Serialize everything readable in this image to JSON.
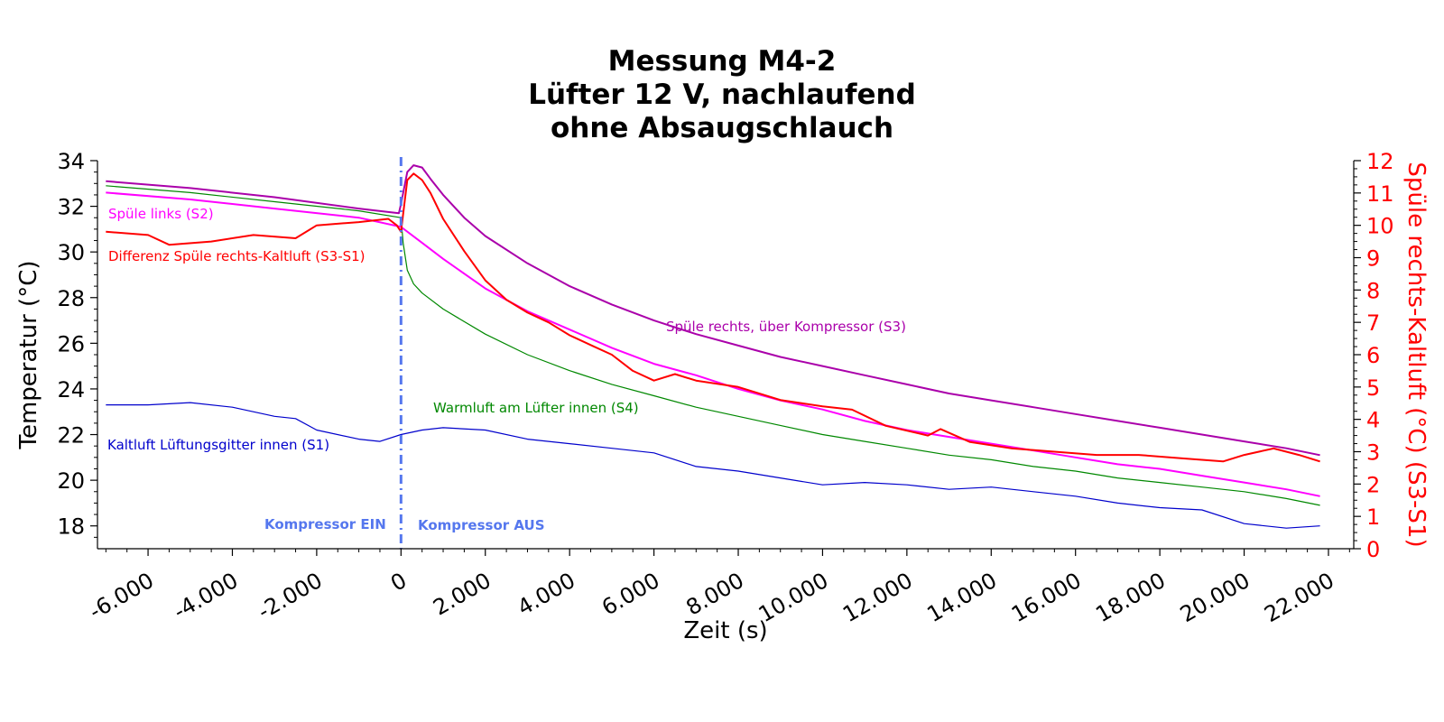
{
  "chart_data": {
    "type": "line",
    "title_lines": [
      "Messung M4-2",
      "Lüfter 12 V, nachlaufend",
      "ohne Absaugschlauch"
    ],
    "xlabel": "Zeit (s)",
    "ylabel": "Temperatur (°C)",
    "y2label": "Spüle rechts-Kaltluft (°C) (S3-S1)",
    "xlim": [
      -7200,
      22600
    ],
    "ylim": [
      17,
      34
    ],
    "y2lim": [
      0,
      12
    ],
    "xticks": [
      -6000,
      -4000,
      -2000,
      0,
      2000,
      4000,
      6000,
      8000,
      10000,
      12000,
      14000,
      16000,
      18000,
      20000,
      22000
    ],
    "xtick_labels": [
      "-6.000",
      "-4.000",
      "-2.000",
      "0",
      "2.000",
      "4.000",
      "6.000",
      "8.000",
      "10.000",
      "12.000",
      "14.000",
      "16.000",
      "18.000",
      "20.000",
      "22.000"
    ],
    "yticks": [
      18,
      20,
      22,
      24,
      26,
      28,
      30,
      32,
      34
    ],
    "y2ticks": [
      0,
      1,
      2,
      3,
      4,
      5,
      6,
      7,
      8,
      9,
      10,
      11,
      12
    ],
    "grid": false,
    "series": [
      {
        "name": "Spüle rechts, über Kompressor (S3)",
        "axis": "left",
        "color": "#aa00aa",
        "x": [
          -7000,
          -5000,
          -3000,
          -1000,
          -50,
          0,
          150,
          300,
          500,
          700,
          1000,
          1500,
          2000,
          3000,
          4000,
          5000,
          6000,
          7000,
          8000,
          9000,
          10000,
          11000,
          12000,
          13000,
          14000,
          15000,
          16000,
          17000,
          18000,
          19000,
          20000,
          21000,
          21800
        ],
        "y": [
          33.1,
          32.8,
          32.4,
          31.9,
          31.7,
          32.1,
          33.5,
          33.8,
          33.7,
          33.2,
          32.5,
          31.5,
          30.7,
          29.5,
          28.5,
          27.7,
          27.0,
          26.4,
          25.9,
          25.4,
          25.0,
          24.6,
          24.2,
          23.8,
          23.5,
          23.2,
          22.9,
          22.6,
          22.3,
          22.0,
          21.7,
          21.4,
          21.1
        ]
      },
      {
        "name": "Spüle links (S2)",
        "axis": "left",
        "color": "#ff00ff",
        "x": [
          -7000,
          -5000,
          -3000,
          -1000,
          0,
          500,
          1000,
          2000,
          3000,
          4000,
          5000,
          6000,
          7000,
          8000,
          9000,
          10000,
          11000,
          12000,
          13000,
          14000,
          15000,
          16000,
          17000,
          18000,
          19000,
          20000,
          21000,
          21800
        ],
        "y": [
          32.6,
          32.3,
          31.9,
          31.5,
          31.1,
          30.4,
          29.7,
          28.4,
          27.4,
          26.6,
          25.8,
          25.1,
          24.6,
          24.0,
          23.5,
          23.1,
          22.6,
          22.2,
          21.9,
          21.6,
          21.3,
          21.0,
          20.7,
          20.5,
          20.2,
          19.9,
          19.6,
          19.3
        ]
      },
      {
        "name": "Warmluft am Lüfter innen (S4)",
        "axis": "left",
        "color": "#008800",
        "x": [
          -7000,
          -5000,
          -3000,
          -1000,
          0,
          50,
          150,
          300,
          500,
          1000,
          2000,
          3000,
          4000,
          5000,
          6000,
          7000,
          8000,
          9000,
          10000,
          11000,
          12000,
          13000,
          14000,
          15000,
          16000,
          17000,
          18000,
          19000,
          20000,
          21000,
          21800
        ],
        "y": [
          32.9,
          32.6,
          32.2,
          31.8,
          31.5,
          30.4,
          29.2,
          28.6,
          28.2,
          27.5,
          26.4,
          25.5,
          24.8,
          24.2,
          23.7,
          23.2,
          22.8,
          22.4,
          22.0,
          21.7,
          21.4,
          21.1,
          20.9,
          20.6,
          20.4,
          20.1,
          19.9,
          19.7,
          19.5,
          19.2,
          18.9
        ]
      },
      {
        "name": "Kaltluft Lüftungsgitter innen (S1)",
        "axis": "left",
        "color": "#0000cc",
        "x": [
          -7000,
          -6000,
          -5000,
          -4000,
          -3000,
          -2500,
          -2000,
          -1000,
          -500,
          0,
          500,
          1000,
          2000,
          3000,
          4000,
          5000,
          6000,
          7000,
          8000,
          9000,
          10000,
          11000,
          12000,
          13000,
          14000,
          15000,
          16000,
          17000,
          18000,
          19000,
          20000,
          21000,
          21800
        ],
        "y": [
          23.3,
          23.3,
          23.4,
          23.2,
          22.8,
          22.7,
          22.2,
          21.8,
          21.7,
          22.0,
          22.2,
          22.3,
          22.2,
          21.8,
          21.6,
          21.4,
          21.2,
          20.6,
          20.4,
          20.1,
          19.8,
          19.9,
          19.8,
          19.6,
          19.7,
          19.5,
          19.3,
          19.0,
          18.8,
          18.7,
          18.1,
          17.9,
          18.0
        ]
      },
      {
        "name": "Differenz Spüle rechts-Kaltluft (S3-S1)",
        "axis": "right",
        "color": "#ff0000",
        "x": [
          -7000,
          -6000,
          -5500,
          -4500,
          -3500,
          -2500,
          -2000,
          -1000,
          -300,
          -100,
          0,
          150,
          300,
          500,
          700,
          1000,
          1500,
          2000,
          2500,
          3000,
          3500,
          4000,
          4500,
          5000,
          5500,
          6000,
          6500,
          7000,
          8000,
          9000,
          10000,
          10700,
          11500,
          12500,
          12800,
          13500,
          14500,
          15500,
          16500,
          17500,
          18500,
          19500,
          20000,
          20700,
          21300,
          21800
        ],
        "y": [
          9.8,
          9.7,
          9.4,
          9.5,
          9.7,
          9.6,
          10.0,
          10.1,
          10.2,
          10.0,
          9.8,
          11.4,
          11.6,
          11.4,
          11.0,
          10.2,
          9.2,
          8.3,
          7.7,
          7.3,
          7.0,
          6.6,
          6.3,
          6.0,
          5.5,
          5.2,
          5.4,
          5.2,
          5.0,
          4.6,
          4.4,
          4.3,
          3.8,
          3.5,
          3.7,
          3.3,
          3.1,
          3.0,
          2.9,
          2.9,
          2.8,
          2.7,
          2.9,
          3.1,
          2.9,
          2.7
        ]
      }
    ],
    "annotations": [
      {
        "text": "Spüle links (S2)",
        "color": "#ff00ff"
      },
      {
        "text": "Differenz Spüle rechts-Kaltluft (S3-S1)",
        "color": "#ff0000"
      },
      {
        "text": "Spüle rechts, über Kompressor (S3)",
        "color": "#aa00aa"
      },
      {
        "text": "Warmluft am Lüfter innen (S4)",
        "color": "#008800"
      },
      {
        "text": "Kaltluft Lüftungsgitter innen (S1)",
        "color": "#0000cc"
      },
      {
        "text": "Kompressor EIN",
        "color": "#5577ee"
      },
      {
        "text": "Kompressor AUS",
        "color": "#5577ee"
      }
    ],
    "vline": {
      "x": 0,
      "color": "#5577ee",
      "style": "dashdot"
    },
    "right_axis_color": "#ff0000"
  }
}
